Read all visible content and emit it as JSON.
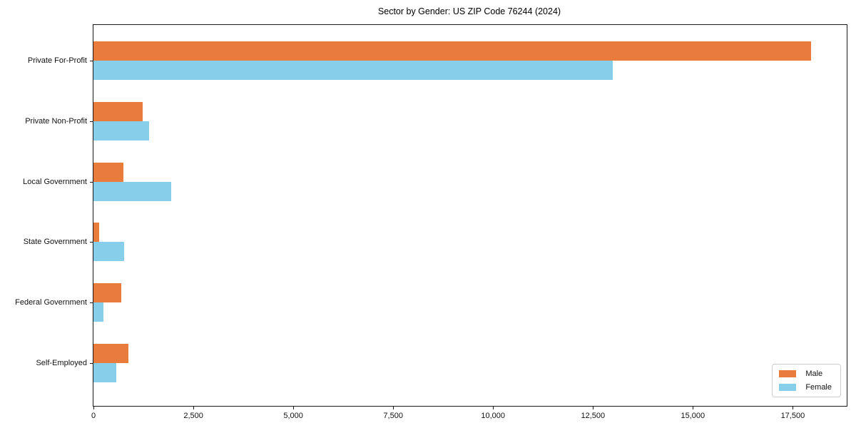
{
  "chart_data": {
    "type": "bar",
    "orientation": "horizontal",
    "title": "Sector by Gender: US ZIP Code 76244 (2024)",
    "categories": [
      "Private For-Profit",
      "Private Non-Profit",
      "Local Government",
      "State Government",
      "Federal Government",
      "Self-Employed"
    ],
    "series": [
      {
        "name": "Male",
        "color": "#E97C3C",
        "values": [
          17950,
          1230,
          740,
          140,
          700,
          875
        ]
      },
      {
        "name": "Female",
        "color": "#87CEEB",
        "values": [
          13000,
          1390,
          1950,
          775,
          250,
          570
        ]
      }
    ],
    "xlabel": "",
    "ylabel": "",
    "xlim": [
      0,
      18850
    ],
    "xticks": {
      "values": [
        0,
        2500,
        5000,
        7500,
        10000,
        12500,
        15000,
        17500
      ],
      "labels": [
        "0",
        "2,500",
        "5,000",
        "7,500",
        "10,000",
        "12,500",
        "15,000",
        "17,500"
      ]
    },
    "legend": {
      "position": "lower right"
    },
    "grid": false,
    "background": "#ffffff",
    "spine_color": "#1a1a1a"
  }
}
